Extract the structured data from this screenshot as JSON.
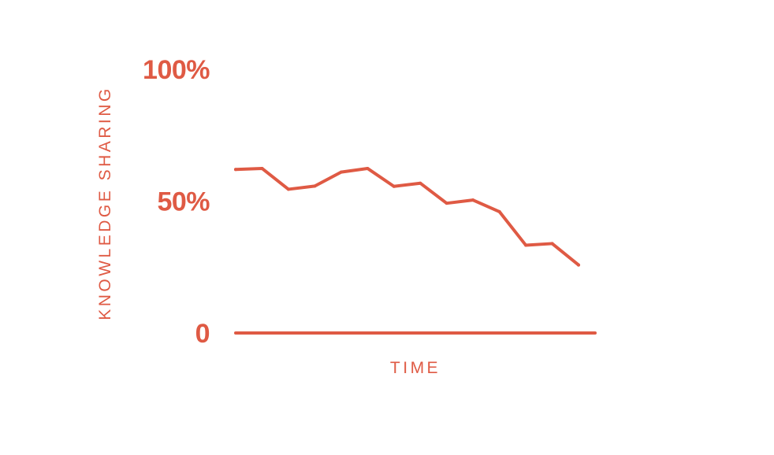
{
  "chart_data": {
    "type": "line",
    "title": "",
    "xlabel": "TIME",
    "ylabel": "KNOWLEDGE SHARING",
    "ylim": [
      0,
      100
    ],
    "yticks": [
      {
        "value": 0,
        "label": "0"
      },
      {
        "value": 50,
        "label": "50%"
      },
      {
        "value": 100,
        "label": "100%"
      }
    ],
    "grid": false,
    "legend": "none",
    "x": [
      0,
      1,
      2,
      3,
      4,
      5,
      6,
      7,
      8,
      9,
      10,
      11,
      12,
      13
    ],
    "series": [
      {
        "values": [
          62,
          62.4,
          54.5,
          55.7,
          61,
          62.4,
          55.6,
          56.8,
          49.2,
          50.4,
          46,
          33.3,
          33.9,
          25.8
        ]
      }
    ],
    "colors": {
      "accent": "#df5a44"
    }
  }
}
